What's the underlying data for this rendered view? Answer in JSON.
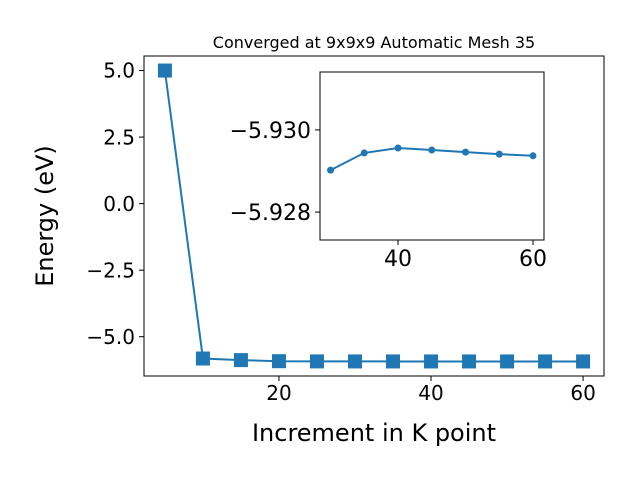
{
  "chart_data": [
    {
      "type": "line",
      "title": "Converged at 9x9x9 Automatic Mesh 35",
      "x_label": "Increment in K point",
      "y_label": "Energy (eV)",
      "x": [
        5,
        10,
        15,
        20,
        25,
        30,
        35,
        40,
        45,
        50,
        55,
        60
      ],
      "series": [
        {
          "color": "#1f77b4",
          "marker": "square",
          "values": [
            5.0,
            -5.82,
            -5.88,
            -5.92,
            -5.928,
            -5.929,
            -5.9294,
            -5.9296,
            -5.9295,
            -5.9295,
            -5.9294,
            -5.9294
          ]
        }
      ],
      "xlim": [
        2.25,
        62.75
      ],
      "ylim": [
        -6.4765,
        5.5465
      ],
      "xticks": [
        20,
        40,
        60
      ],
      "yticks": [
        {
          "value": 5,
          "label": "5.0"
        },
        {
          "value": 2.5,
          "label": "2.5"
        },
        {
          "value": 0,
          "label": "0.0"
        },
        {
          "value": -2.5,
          "label": "−2.5"
        },
        {
          "value": -5,
          "label": "−5.0"
        }
      ]
    },
    {
      "type": "line",
      "x": [
        30,
        35,
        40,
        45,
        50,
        55,
        60
      ],
      "series": [
        {
          "color": "#1f77b4",
          "marker": "circle",
          "values": [
            -5.92902,
            -5.92944,
            -5.92956,
            -5.92951,
            -5.92946,
            -5.92941,
            -5.92937
          ]
        }
      ],
      "xlim": [
        28.44,
        61.63
      ],
      "ylim": [
        -5.92732,
        -5.93141
      ],
      "xticks": [
        40,
        60
      ],
      "yticks": [
        {
          "value": -5.93,
          "label": "−5.930"
        },
        {
          "value": -5.928,
          "label": "−5.928"
        }
      ]
    }
  ]
}
